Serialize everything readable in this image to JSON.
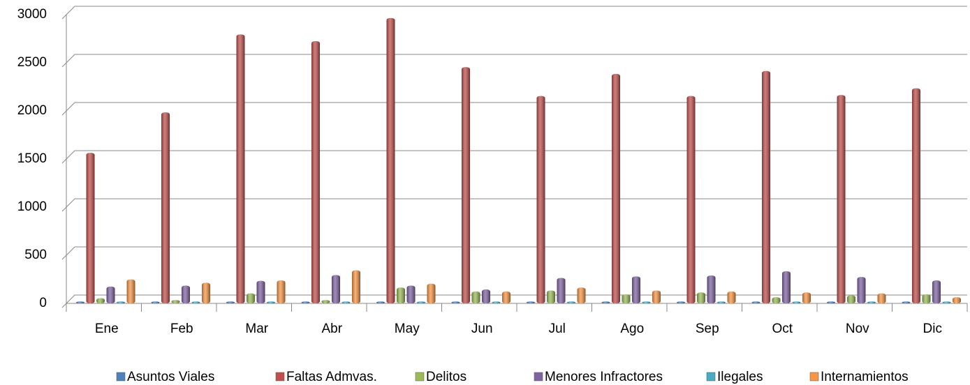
{
  "chart_data": {
    "type": "bar",
    "categories": [
      "Ene",
      "Feb",
      "Mar",
      "Abr",
      "May",
      "Jun",
      "Jul",
      "Ago",
      "Sep",
      "Oct",
      "Nov",
      "Dic"
    ],
    "series": [
      {
        "name": "Asuntos Viales",
        "color": "#4f81bd",
        "values": [
          5,
          5,
          5,
          5,
          5,
          5,
          5,
          5,
          5,
          5,
          5,
          5
        ]
      },
      {
        "name": "Faltas Admvas.",
        "color": "#c0504d",
        "values": [
          1550,
          1970,
          2780,
          2710,
          2950,
          2440,
          2140,
          2370,
          2140,
          2400,
          2150,
          2220
        ]
      },
      {
        "name": "Delitos",
        "color": "#9bbb59",
        "values": [
          40,
          20,
          90,
          20,
          150,
          110,
          120,
          80,
          100,
          50,
          70,
          80
        ]
      },
      {
        "name": "Menores Infractores",
        "color": "#8064a2",
        "values": [
          160,
          170,
          220,
          280,
          170,
          130,
          250,
          265,
          275,
          320,
          260,
          225
        ]
      },
      {
        "name": "Ilegales",
        "color": "#4bacc6",
        "values": [
          5,
          5,
          5,
          5,
          5,
          5,
          5,
          5,
          5,
          5,
          5,
          5
        ]
      },
      {
        "name": "Internamientos",
        "color": "#f79646",
        "values": [
          235,
          200,
          225,
          330,
          190,
          110,
          150,
          120,
          110,
          100,
          90,
          50
        ]
      }
    ],
    "ylim": [
      0,
      3000
    ],
    "yticks": [
      0,
      500,
      1000,
      1500,
      2000,
      2500,
      3000
    ],
    "grid": true
  }
}
